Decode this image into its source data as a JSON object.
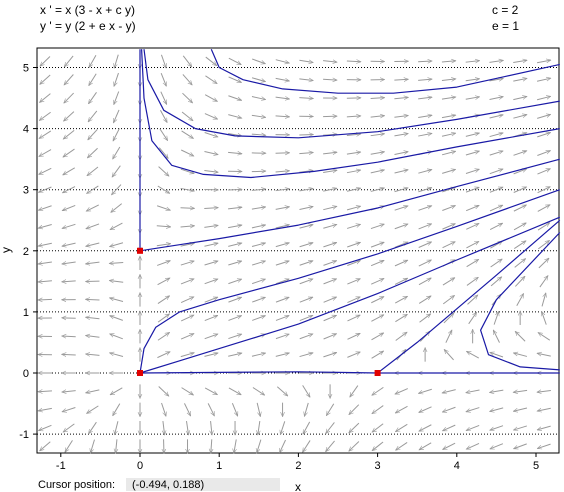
{
  "equations": {
    "x_prime": "x ' = x (3 - x + c y)",
    "y_prime": "y ' = y (2 + e x - y)"
  },
  "parameters": {
    "c": "c = 2",
    "e": "e = 1"
  },
  "status": {
    "label": "Cursor position:",
    "value": "(-0.494, 0.188)"
  },
  "chart_data": {
    "type": "line",
    "subtype": "phase-plane direction field",
    "xlabel": "x",
    "ylabel": "y",
    "xlim": [
      -1.3,
      5.3
    ],
    "ylim": [
      -1.3,
      5.3
    ],
    "xticks": [
      -1,
      0,
      1,
      2,
      3,
      4,
      5
    ],
    "yticks": [
      -1,
      0,
      1,
      2,
      3,
      4,
      5
    ],
    "grid": "dotted horizontal lines at y ticks",
    "params": {
      "c": 2,
      "e": 1
    },
    "equilibria": [
      {
        "x": 0,
        "y": 0
      },
      {
        "x": 0,
        "y": 2
      },
      {
        "x": 3,
        "y": 0
      }
    ],
    "trajectories": [
      [
        [
          0,
          2
        ],
        [
          0,
          3
        ],
        [
          0,
          4
        ],
        [
          0,
          5
        ],
        [
          0,
          5.3
        ]
      ],
      [
        [
          0,
          0
        ],
        [
          1,
          0.01
        ],
        [
          2,
          0.02
        ],
        [
          2.5,
          0.01
        ],
        [
          3,
          0
        ]
      ],
      [
        [
          3,
          0
        ],
        [
          4,
          0
        ],
        [
          5.3,
          0
        ]
      ],
      [
        [
          0.9,
          5.3
        ],
        [
          1.0,
          5.0
        ],
        [
          1.3,
          4.8
        ],
        [
          1.8,
          4.65
        ],
        [
          2.5,
          4.58
        ],
        [
          3.2,
          4.58
        ],
        [
          4.0,
          4.68
        ],
        [
          4.6,
          4.85
        ],
        [
          5.3,
          5.05
        ]
      ],
      [
        [
          0.05,
          5.3
        ],
        [
          0.1,
          4.8
        ],
        [
          0.3,
          4.3
        ],
        [
          0.7,
          4.0
        ],
        [
          1.2,
          3.88
        ],
        [
          2.0,
          3.85
        ],
        [
          3.0,
          3.95
        ],
        [
          4.0,
          4.15
        ],
        [
          5.3,
          4.45
        ]
      ],
      [
        [
          0.02,
          5.3
        ],
        [
          0.05,
          4.5
        ],
        [
          0.15,
          3.8
        ],
        [
          0.4,
          3.4
        ],
        [
          0.8,
          3.25
        ],
        [
          1.4,
          3.2
        ],
        [
          2.2,
          3.3
        ],
        [
          3.0,
          3.45
        ],
        [
          4.0,
          3.7
        ],
        [
          5.3,
          4.0
        ]
      ],
      [
        [
          0,
          2
        ],
        [
          0.5,
          2.1
        ],
        [
          1.0,
          2.2
        ],
        [
          2.0,
          2.42
        ],
        [
          3.0,
          2.7
        ],
        [
          4.0,
          3.05
        ],
        [
          5.3,
          3.5
        ]
      ],
      [
        [
          0,
          0
        ],
        [
          0.05,
          0.4
        ],
        [
          0.2,
          0.75
        ],
        [
          0.5,
          1.0
        ],
        [
          1.0,
          1.2
        ],
        [
          2.0,
          1.55
        ],
        [
          3.0,
          1.95
        ],
        [
          4.0,
          2.4
        ],
        [
          5.3,
          3.0
        ]
      ],
      [
        [
          0,
          0
        ],
        [
          0.5,
          0.2
        ],
        [
          1.0,
          0.4
        ],
        [
          2.0,
          0.8
        ],
        [
          3.0,
          1.3
        ],
        [
          4.0,
          1.85
        ],
        [
          5.3,
          2.55
        ]
      ],
      [
        [
          3,
          0
        ],
        [
          3.5,
          0.5
        ],
        [
          4.0,
          1.05
        ],
        [
          4.5,
          1.6
        ],
        [
          5.3,
          2.5
        ]
      ],
      [
        [
          5.3,
          0.05
        ],
        [
          4.8,
          0.1
        ],
        [
          4.4,
          0.3
        ],
        [
          4.3,
          0.7
        ],
        [
          4.5,
          1.2
        ],
        [
          5.3,
          2.3
        ]
      ]
    ]
  }
}
